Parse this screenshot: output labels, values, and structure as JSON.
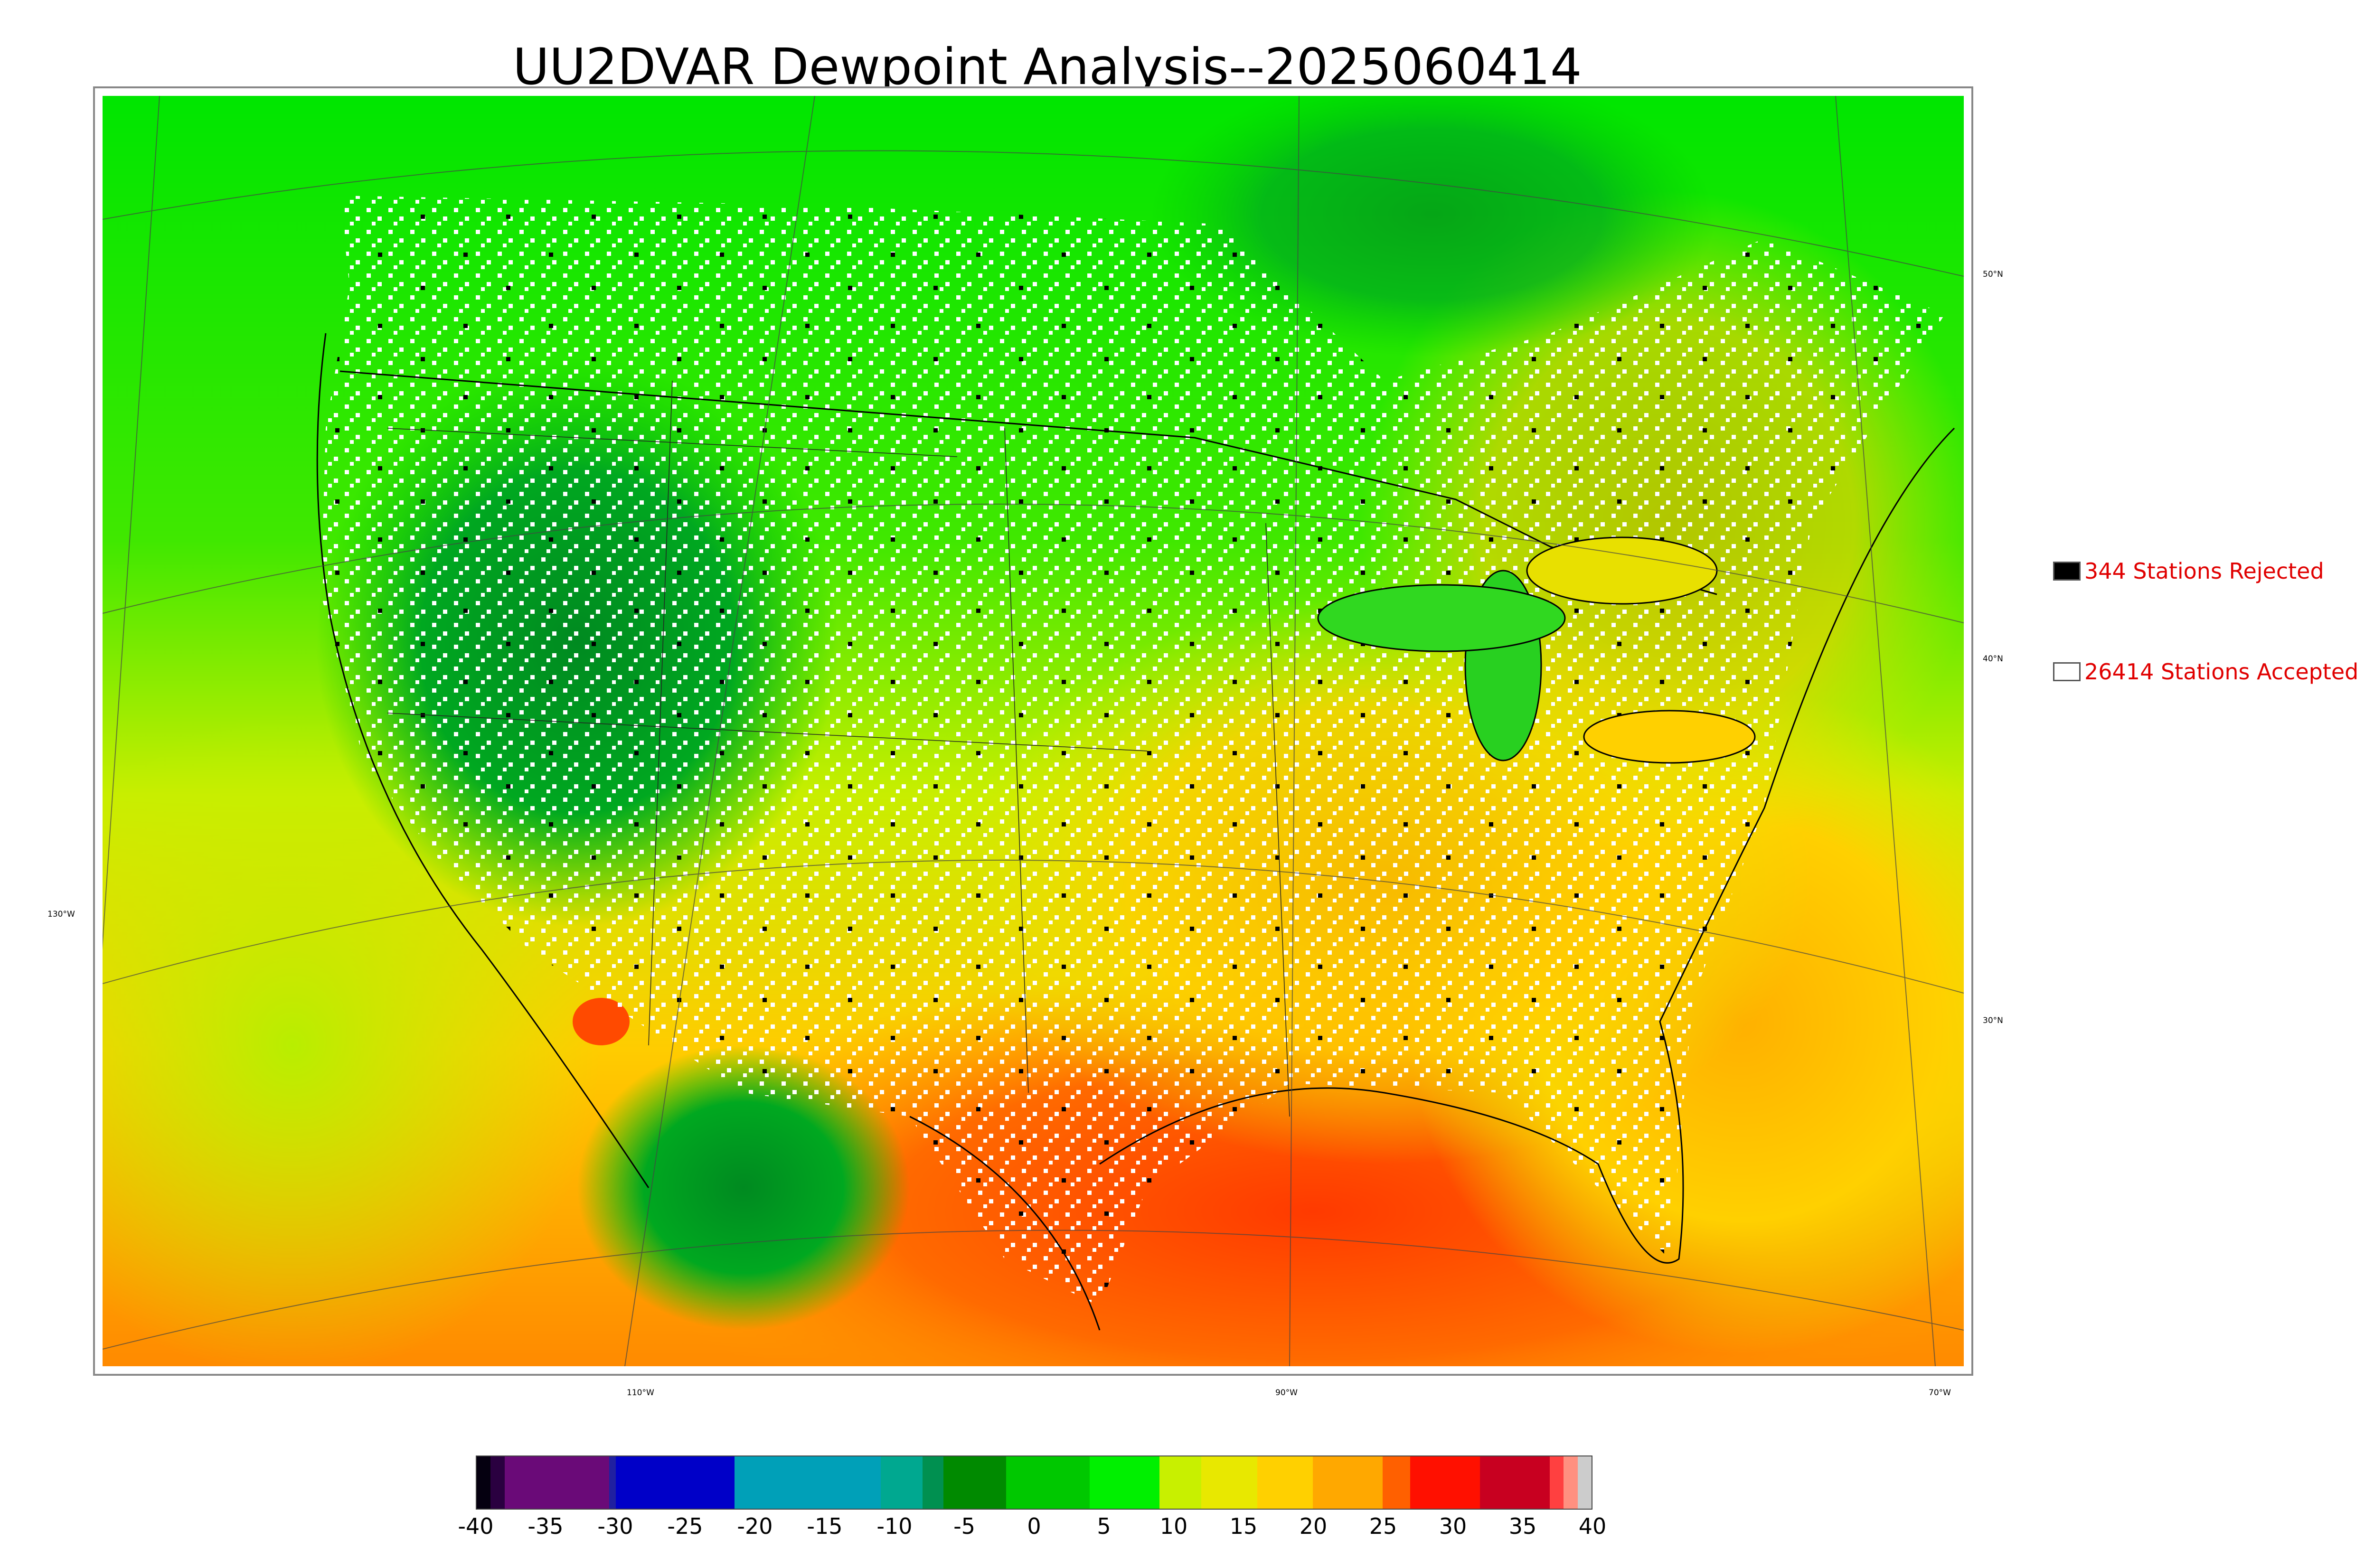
{
  "title": "UU2DVAR Dewpoint Analysis--2025060414",
  "coords": {
    "lat_50": "50°N",
    "lat_40": "40°N",
    "lat_30": "30°N",
    "lon_130": "130°W",
    "lon_110": "110°W",
    "lon_90": "90°W",
    "lon_70": "70°W"
  },
  "legend": {
    "rejected": {
      "label": "344 Stations Rejected",
      "count": 344,
      "color": "#000000"
    },
    "accepted": {
      "label": "26414 Stations Accepted",
      "count": 26414,
      "color": "#ffffff"
    }
  },
  "colorbar": {
    "ticks": [
      "-40",
      "-35",
      "-30",
      "-25",
      "-20",
      "-15",
      "-10",
      "-5",
      "0",
      "5",
      "10",
      "15",
      "20",
      "25",
      "30",
      "35",
      "40"
    ],
    "range": [
      -40,
      40
    ],
    "bands": [
      {
        "from": -40,
        "to": -39,
        "color": "#050010"
      },
      {
        "from": -39,
        "to": -38,
        "color": "#2a0040"
      },
      {
        "from": -38,
        "to": -30.5,
        "color": "#6a0a78"
      },
      {
        "from": -30.5,
        "to": -30,
        "color": "#2020a0"
      },
      {
        "from": -30,
        "to": -21.5,
        "color": "#0000c8"
      },
      {
        "from": -21.5,
        "to": -11,
        "color": "#00a0b8"
      },
      {
        "from": -11,
        "to": -8,
        "color": "#00a890"
      },
      {
        "from": -8,
        "to": -6.5,
        "color": "#009050"
      },
      {
        "from": -6.5,
        "to": -2,
        "color": "#008a00"
      },
      {
        "from": -2,
        "to": 4,
        "color": "#00c800"
      },
      {
        "from": 4,
        "to": 9,
        "color": "#00f000"
      },
      {
        "from": 9,
        "to": 12,
        "color": "#c8f000"
      },
      {
        "from": 12,
        "to": 16,
        "color": "#e8e800"
      },
      {
        "from": 16,
        "to": 20,
        "color": "#ffd000"
      },
      {
        "from": 20,
        "to": 25,
        "color": "#ffa800"
      },
      {
        "from": 25,
        "to": 27,
        "color": "#ff6000"
      },
      {
        "from": 27,
        "to": 32,
        "color": "#ff1000"
      },
      {
        "from": 32,
        "to": 37,
        "color": "#c80020"
      },
      {
        "from": 37,
        "to": 38,
        "color": "#ff4040"
      },
      {
        "from": 38,
        "to": 39,
        "color": "#ff9080"
      },
      {
        "from": 39,
        "to": 40,
        "color": "#cccccc"
      }
    ]
  }
}
